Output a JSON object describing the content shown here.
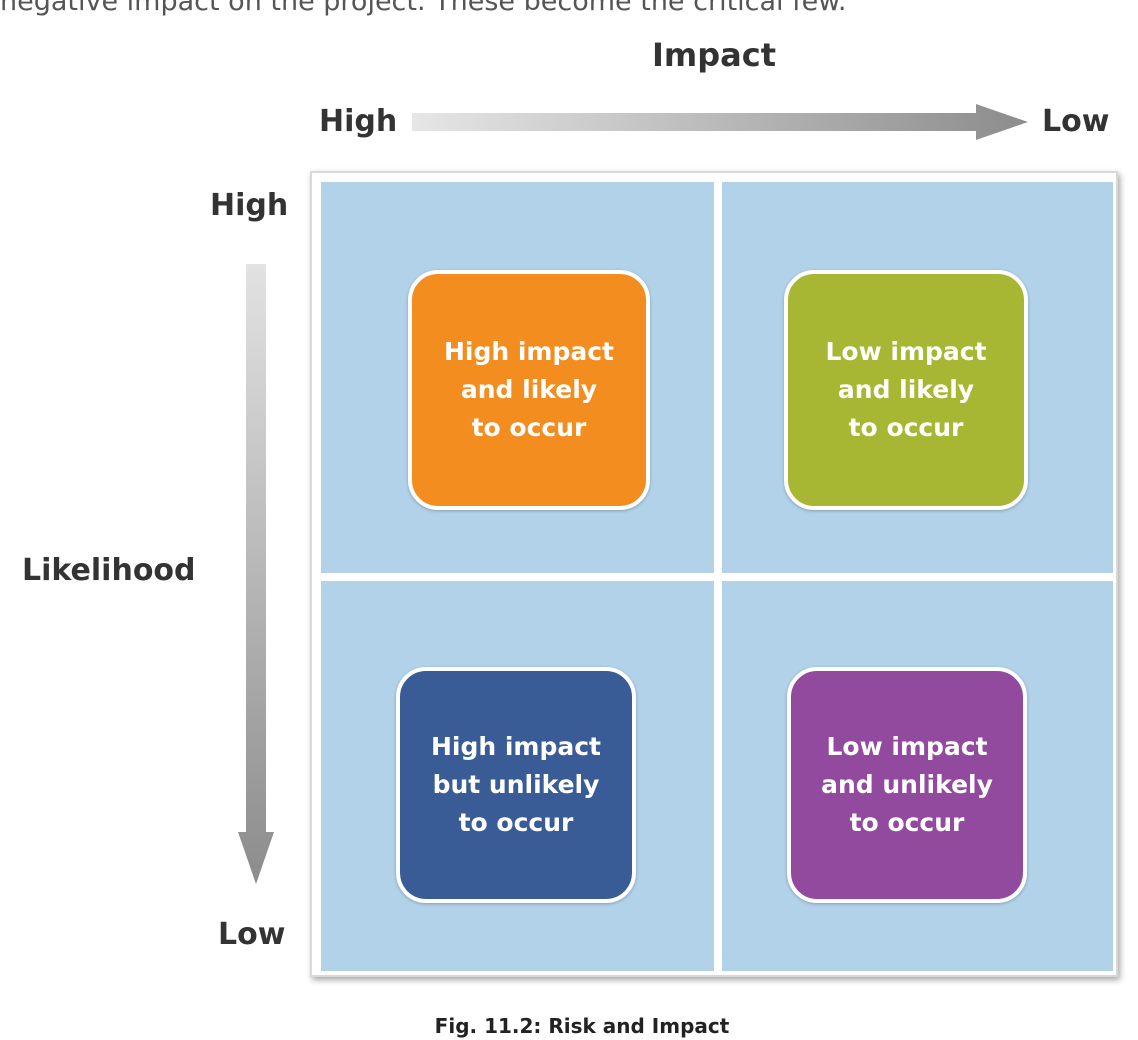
{
  "intro_text": "negative impact on the project. These become the critical few.",
  "impact_axis": {
    "title": "Impact",
    "high_label": "High",
    "low_label": "Low"
  },
  "likelihood_axis": {
    "title": "Likelihood",
    "high_label": "High",
    "low_label": "Low"
  },
  "quadrants": {
    "top_left": {
      "text": "High impact\nand likely\nto occur",
      "color": "#f48d1f"
    },
    "top_right": {
      "text": "Low impact\nand likely\nto occur",
      "color": "#a8b733"
    },
    "bottom_left": {
      "text": "High impact\nbut unlikely\nto occur",
      "color": "#3a5c96"
    },
    "bottom_right": {
      "text": "Low impact\nand unlikely\nto occur",
      "color": "#924a9f"
    }
  },
  "colors": {
    "quadrant_bg": "#b2d2ea",
    "arrow_gray": "#9a9a9a"
  },
  "caption": "Fig. 11.2: Risk and Impact"
}
